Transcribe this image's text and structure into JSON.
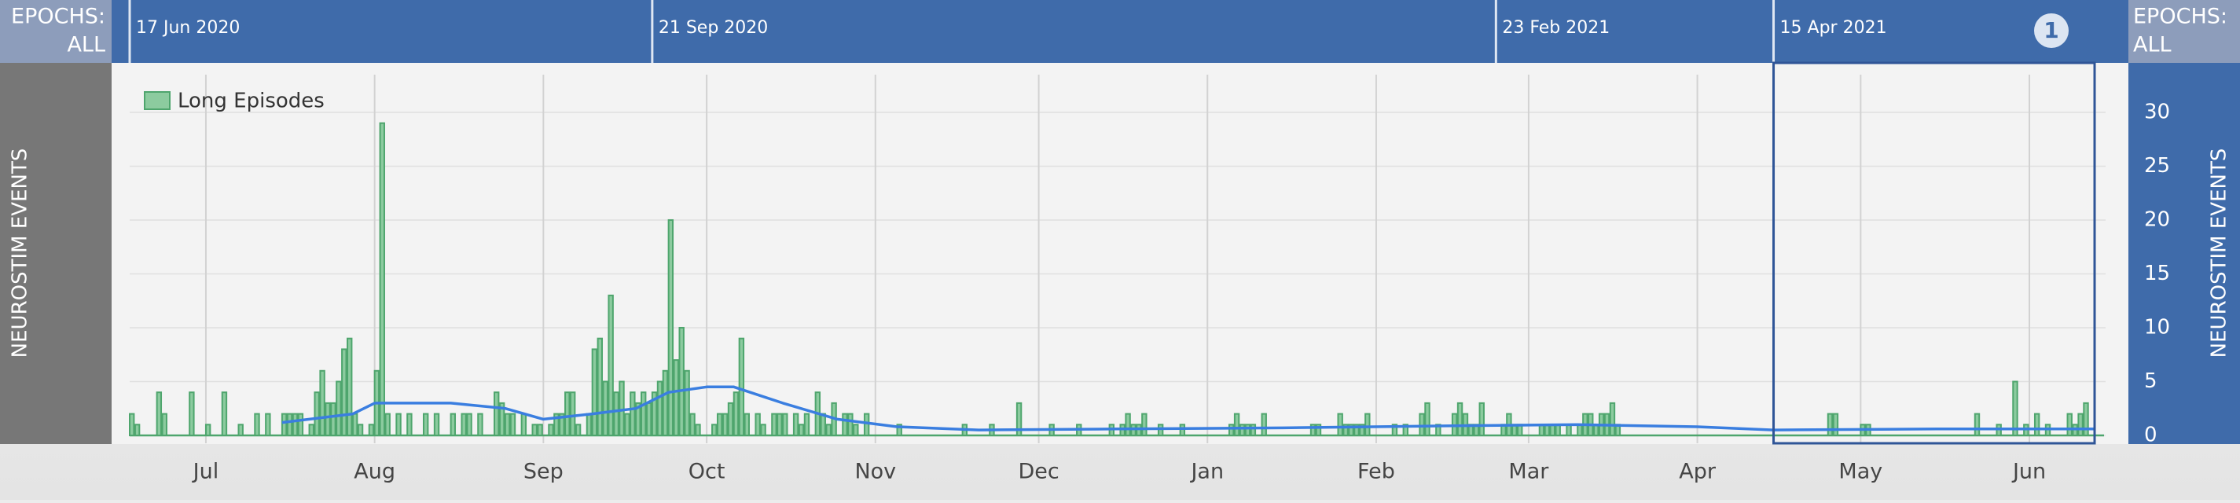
{
  "header": {
    "left_label": "EPOCHS:",
    "left_value": "ALL",
    "right_label": "EPOCHS:",
    "right_value": "ALL",
    "epochs": [
      {
        "label": "17 Jun 2020",
        "date": "2020-06-17"
      },
      {
        "label": "21 Sep 2020",
        "date": "2020-09-21"
      },
      {
        "label": "23 Feb 2021",
        "date": "2021-02-23"
      },
      {
        "label": "15 Apr 2021",
        "date": "2021-04-15"
      }
    ],
    "selection_badge": "1"
  },
  "chart_data": {
    "type": "bar",
    "y_axis_label": "NEUROSTIM EVENTS",
    "y2_axis_label": "NEUROSTIM EVENTS",
    "legend": "top-left",
    "grid": true,
    "xlim": [
      "2020-06-17",
      "2021-06-15"
    ],
    "xticks": [
      {
        "value": "2020-07-01",
        "label": "Jul"
      },
      {
        "value": "2020-08-01",
        "label": "Aug"
      },
      {
        "value": "2020-09-01",
        "label": "Sep"
      },
      {
        "value": "2020-10-01",
        "label": "Oct"
      },
      {
        "value": "2020-11-01",
        "label": "Nov"
      },
      {
        "value": "2020-12-01",
        "label": "Dec"
      },
      {
        "value": "2021-01-01",
        "label": "Jan"
      },
      {
        "value": "2021-02-01",
        "label": "Feb"
      },
      {
        "value": "2021-03-01",
        "label": "Mar"
      },
      {
        "value": "2021-04-01",
        "label": "Apr"
      },
      {
        "value": "2021-05-01",
        "label": "May"
      },
      {
        "value": "2021-06-01",
        "label": "Jun"
      }
    ],
    "ylim": [
      0,
      33.5
    ],
    "yticks": [
      0,
      5,
      10,
      15,
      20,
      25,
      30
    ],
    "x": [
      "2020-06-17",
      "2020-06-18",
      "2020-06-22",
      "2020-06-23",
      "2020-06-28",
      "2020-07-01",
      "2020-07-04",
      "2020-07-07",
      "2020-07-10",
      "2020-07-12",
      "2020-07-15",
      "2020-07-16",
      "2020-07-17",
      "2020-07-18",
      "2020-07-20",
      "2020-07-21",
      "2020-07-22",
      "2020-07-23",
      "2020-07-24",
      "2020-07-25",
      "2020-07-26",
      "2020-07-27",
      "2020-07-28",
      "2020-07-29",
      "2020-07-31",
      "2020-08-01",
      "2020-08-02",
      "2020-08-03",
      "2020-08-05",
      "2020-08-07",
      "2020-08-10",
      "2020-08-12",
      "2020-08-15",
      "2020-08-17",
      "2020-08-18",
      "2020-08-20",
      "2020-08-23",
      "2020-08-24",
      "2020-08-25",
      "2020-08-26",
      "2020-08-28",
      "2020-08-30",
      "2020-08-31",
      "2020-09-02",
      "2020-09-03",
      "2020-09-04",
      "2020-09-05",
      "2020-09-06",
      "2020-09-07",
      "2020-09-09",
      "2020-09-10",
      "2020-09-11",
      "2020-09-12",
      "2020-09-13",
      "2020-09-14",
      "2020-09-15",
      "2020-09-16",
      "2020-09-17",
      "2020-09-18",
      "2020-09-19",
      "2020-09-20",
      "2020-09-21",
      "2020-09-22",
      "2020-09-23",
      "2020-09-24",
      "2020-09-25",
      "2020-09-26",
      "2020-09-27",
      "2020-09-28",
      "2020-09-29",
      "2020-10-02",
      "2020-10-03",
      "2020-10-04",
      "2020-10-05",
      "2020-10-06",
      "2020-10-07",
      "2020-10-08",
      "2020-10-10",
      "2020-10-11",
      "2020-10-13",
      "2020-10-14",
      "2020-10-15",
      "2020-10-17",
      "2020-10-18",
      "2020-10-19",
      "2020-10-21",
      "2020-10-22",
      "2020-10-23",
      "2020-10-24",
      "2020-10-26",
      "2020-10-27",
      "2020-10-28",
      "2020-10-30",
      "2020-11-05",
      "2020-11-17",
      "2020-11-22",
      "2020-11-27",
      "2020-12-03",
      "2020-12-08",
      "2020-12-14",
      "2020-12-16",
      "2020-12-17",
      "2020-12-18",
      "2020-12-19",
      "2020-12-20",
      "2020-12-23",
      "2020-12-27",
      "2021-01-05",
      "2021-01-06",
      "2021-01-07",
      "2021-01-08",
      "2021-01-09",
      "2021-01-11",
      "2021-01-20",
      "2021-01-21",
      "2021-01-25",
      "2021-01-26",
      "2021-01-27",
      "2021-01-28",
      "2021-01-29",
      "2021-01-30",
      "2021-02-04",
      "2021-02-06",
      "2021-02-09",
      "2021-02-10",
      "2021-02-12",
      "2021-02-15",
      "2021-02-16",
      "2021-02-17",
      "2021-02-18",
      "2021-02-19",
      "2021-02-20",
      "2021-02-24",
      "2021-02-25",
      "2021-02-26",
      "2021-02-27",
      "2021-03-03",
      "2021-03-04",
      "2021-03-05",
      "2021-03-06",
      "2021-03-08",
      "2021-03-10",
      "2021-03-11",
      "2021-03-12",
      "2021-03-13",
      "2021-03-14",
      "2021-03-15",
      "2021-03-16",
      "2021-03-17",
      "2021-04-25",
      "2021-04-26",
      "2021-05-01",
      "2021-05-02",
      "2021-05-22",
      "2021-05-26",
      "2021-05-29",
      "2021-05-31",
      "2021-06-02",
      "2021-06-04",
      "2021-06-08",
      "2021-06-09",
      "2021-06-10",
      "2021-06-11"
    ],
    "series": [
      {
        "name": "Long Episodes",
        "color": "#8ccb9f",
        "edge_color": "#4ea56d",
        "values": [
          2,
          1,
          4,
          2,
          4,
          1,
          4,
          1,
          2,
          2,
          2,
          2,
          2,
          2,
          1,
          4,
          6,
          3,
          3,
          5,
          8,
          9,
          2,
          1,
          1,
          6,
          29,
          2,
          2,
          2,
          2,
          2,
          2,
          2,
          2,
          2,
          4,
          3,
          2,
          2,
          2,
          1,
          1,
          1,
          2,
          2,
          4,
          4,
          1,
          2,
          8,
          9,
          5,
          13,
          4,
          5,
          2,
          4,
          3,
          4,
          3,
          4,
          5,
          6,
          20,
          7,
          10,
          6,
          2,
          1,
          1,
          2,
          2,
          3,
          4,
          9,
          2,
          2,
          1,
          2,
          2,
          2,
          2,
          1,
          2,
          4,
          2,
          1,
          3,
          2,
          2,
          1,
          2,
          1,
          1,
          1,
          3,
          1,
          1,
          1,
          1,
          2,
          1,
          1,
          2,
          1,
          1,
          1,
          2,
          1,
          1,
          1,
          2,
          1,
          1,
          2,
          1,
          1,
          1,
          1,
          2,
          1,
          1,
          2,
          3,
          1,
          2,
          3,
          2,
          1,
          1,
          3,
          1,
          2,
          1,
          1,
          1,
          1,
          1,
          1,
          1,
          1,
          2,
          2,
          1,
          2,
          2,
          3,
          1,
          2,
          2,
          1,
          1,
          2,
          1,
          5,
          1,
          2,
          1,
          2,
          1,
          2,
          3
        ]
      }
    ],
    "trend": {
      "color": "#3a7ee0",
      "x": [
        "2020-07-15",
        "2020-07-20",
        "2020-07-28",
        "2020-08-01",
        "2020-08-15",
        "2020-08-25",
        "2020-09-01",
        "2020-09-10",
        "2020-09-18",
        "2020-09-24",
        "2020-10-01",
        "2020-10-06",
        "2020-10-15",
        "2020-10-25",
        "2020-11-05",
        "2020-11-20",
        "2020-12-15",
        "2021-01-15",
        "2021-02-15",
        "2021-03-10",
        "2021-04-01",
        "2021-04-15",
        "2021-05-15",
        "2021-06-13"
      ],
      "values": [
        1.2,
        1.5,
        2,
        3,
        3,
        2.5,
        1.5,
        2,
        2.5,
        4,
        4.5,
        4.5,
        3,
        1.5,
        0.8,
        0.5,
        0.6,
        0.7,
        0.9,
        1,
        0.8,
        0.5,
        0.6,
        0.6
      ]
    }
  }
}
